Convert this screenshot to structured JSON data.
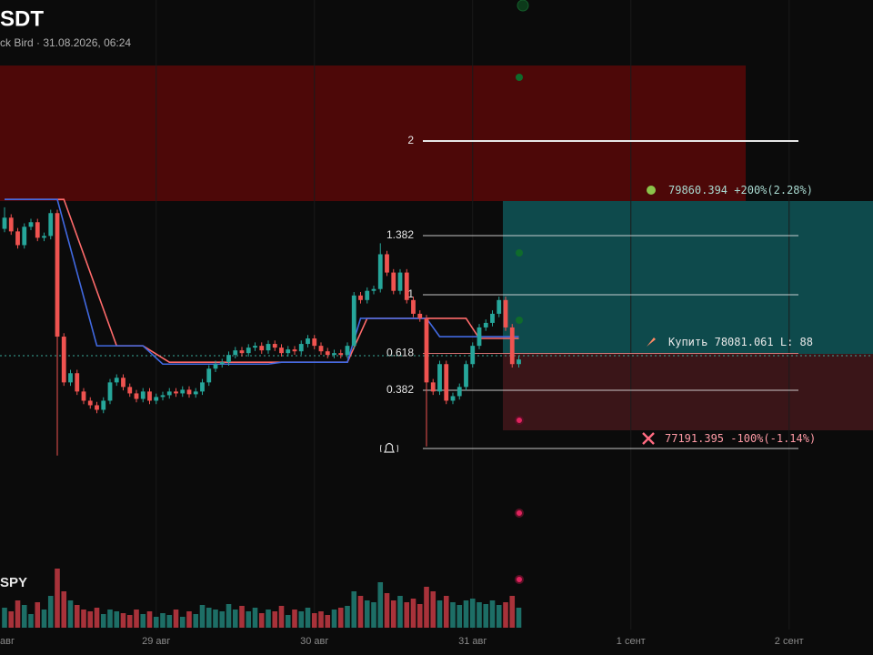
{
  "chart_data": {
    "type": "candlestick",
    "title": "SDT",
    "subtitle": "ck Bird · 31.08.2026, 06:24",
    "volume_label": "SPY",
    "up_color": "#26a69a",
    "down_color": "#ef5350",
    "open": [
      79537,
      79667,
      79507,
      79347,
      79561,
      79614,
      79433,
      79454,
      79720,
      78282,
      77749,
      77856,
      77643,
      77536,
      77483,
      77430,
      77536,
      77749,
      77803,
      77696,
      77621,
      77557,
      77643,
      77536,
      77579,
      77600,
      77643,
      77621,
      77664,
      77611,
      77643,
      77749,
      77909,
      77962,
      77984,
      78069,
      78122,
      78090,
      78154,
      78175,
      78122,
      78197,
      78154,
      78090,
      78133,
      78111,
      78197,
      78261,
      78175,
      78111,
      78069,
      78090,
      78069,
      78175,
      78761,
      78708,
      78815,
      78836,
      79241,
      79028,
      78815,
      79028,
      78708,
      78548,
      78495,
      77749,
      77643,
      77962,
      77536,
      77589,
      77696,
      77962,
      78175,
      78389,
      78442,
      78548,
      78708,
      78389,
      77962
    ],
    "high": [
      79787,
      79707,
      79547,
      79601,
      79654,
      79654,
      79494,
      79760,
      79760,
      78322,
      77896,
      77896,
      77683,
      77576,
      77523,
      77576,
      77789,
      77843,
      77843,
      77736,
      77661,
      77683,
      77683,
      77619,
      77640,
      77683,
      77683,
      77704,
      77704,
      77683,
      77789,
      77949,
      78002,
      78024,
      78109,
      78162,
      78162,
      78194,
      78215,
      78215,
      78237,
      78237,
      78194,
      78173,
      78173,
      78237,
      78301,
      78301,
      78215,
      78151,
      78130,
      78130,
      78215,
      78801,
      78801,
      78855,
      78876,
      79369,
      79281,
      79068,
      79068,
      79068,
      78748,
      78588,
      78535,
      77789,
      78002,
      78002,
      77629,
      77736,
      78002,
      78215,
      78429,
      78482,
      78588,
      78748,
      78748,
      78429,
      78056
    ],
    "low": [
      79497,
      79467,
      79307,
      79307,
      79521,
      79393,
      79393,
      79414,
      76897,
      77709,
      77709,
      77603,
      77496,
      77443,
      77390,
      77390,
      77496,
      77709,
      77656,
      77581,
      77517,
      77517,
      77496,
      77496,
      77539,
      77560,
      77581,
      77581,
      77571,
      77571,
      77603,
      77709,
      77869,
      77922,
      77944,
      78029,
      78050,
      78050,
      78114,
      78082,
      78082,
      78114,
      78050,
      78050,
      78071,
      78071,
      78157,
      78135,
      78071,
      78029,
      78029,
      78029,
      78029,
      78135,
      78668,
      78668,
      78775,
      78796,
      78988,
      78775,
      78775,
      78668,
      78508,
      78455,
      77004,
      77603,
      77603,
      77496,
      77496,
      77549,
      77656,
      77922,
      78135,
      78349,
      78402,
      78508,
      78349,
      77922,
      77922
    ],
    "close": [
      79667,
      79507,
      79347,
      79561,
      79614,
      79433,
      79454,
      79720,
      78282,
      77749,
      77856,
      77643,
      77536,
      77483,
      77430,
      77536,
      77749,
      77803,
      77696,
      77621,
      77557,
      77643,
      77536,
      77579,
      77600,
      77643,
      77621,
      77664,
      77611,
      77643,
      77749,
      77909,
      77962,
      77984,
      78069,
      78122,
      78090,
      78154,
      78175,
      78122,
      78197,
      78154,
      78090,
      78133,
      78111,
      78197,
      78261,
      78175,
      78111,
      78069,
      78090,
      78069,
      78175,
      78761,
      78708,
      78815,
      78836,
      79241,
      79028,
      78815,
      79028,
      78708,
      78548,
      78495,
      77749,
      77643,
      77962,
      77536,
      77589,
      77696,
      77962,
      78175,
      78389,
      78442,
      78548,
      78708,
      78389,
      77962,
      78016
    ],
    "volume": [
      22,
      18,
      30,
      25,
      15,
      28,
      20,
      35,
      65,
      40,
      30,
      25,
      20,
      18,
      22,
      15,
      20,
      18,
      16,
      14,
      20,
      15,
      18,
      12,
      16,
      14,
      20,
      12,
      18,
      15,
      25,
      22,
      20,
      18,
      26,
      20,
      24,
      18,
      22,
      16,
      20,
      18,
      24,
      14,
      20,
      18,
      22,
      16,
      18,
      14,
      20,
      22,
      24,
      40,
      35,
      30,
      28,
      50,
      38,
      30,
      35,
      28,
      32,
      26,
      45,
      40,
      30,
      35,
      28,
      25,
      30,
      32,
      28,
      26,
      30,
      25,
      28,
      35,
      22
    ],
    "x_labels": [
      {
        "hour": -1,
        "label": "авг"
      },
      {
        "hour": 23,
        "label": "29 авг"
      },
      {
        "hour": 47,
        "label": "30 авг"
      },
      {
        "hour": 71,
        "label": "31 авг"
      },
      {
        "hour": 95,
        "label": "1 сент"
      },
      {
        "hour": 119,
        "label": "2 сент"
      }
    ],
    "trails": [
      {
        "color": "#ff6b6b",
        "points": [
          [
            0,
            79880
          ],
          [
            9,
            79880
          ],
          [
            17,
            78175
          ],
          [
            21,
            78175
          ],
          [
            25,
            77984
          ],
          [
            52,
            77984
          ],
          [
            55,
            78495
          ],
          [
            70,
            78495
          ],
          [
            72,
            78261
          ],
          [
            78,
            78261
          ]
        ]
      },
      {
        "color": "#4169e1",
        "points": [
          [
            0,
            79880
          ],
          [
            8,
            79880
          ],
          [
            14,
            78175
          ],
          [
            21,
            78175
          ],
          [
            24,
            77962
          ],
          [
            40,
            77962
          ],
          [
            42,
            77984
          ],
          [
            52,
            77984
          ],
          [
            54,
            78495
          ],
          [
            64,
            78495
          ],
          [
            66,
            78282
          ],
          [
            78,
            78282
          ]
        ]
      }
    ],
    "fib_levels": [
      {
        "ratio": 2,
        "price": 80559
      },
      {
        "ratio": 1.382,
        "price": 79458
      },
      {
        "ratio": 1,
        "price": 78769
      },
      {
        "ratio": 0.618,
        "price": 78086
      },
      {
        "ratio": 0.382,
        "price": 77657
      },
      {
        "price": 76980
      }
    ],
    "zones": [
      {
        "low": 79860,
        "high": 81438,
        "color": "#4d0808"
      }
    ],
    "trade": {
      "take_profit": 79860.394,
      "tp_note": "+200%(2.28%)",
      "entry_label": "Купить",
      "entry": 78081.061,
      "size_label": "L: 88",
      "stop_loss": 77191.395,
      "sl_note": "-100%(-1.14%)",
      "tp_color": "#0e4a4c",
      "sl_color": "#3a1518"
    }
  }
}
